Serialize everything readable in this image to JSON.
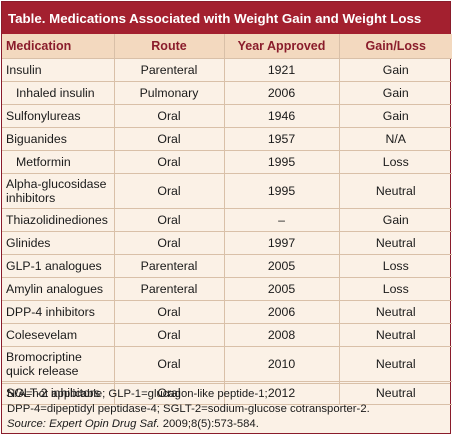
{
  "title": "Table. Medications Associated with Weight Gain and Weight Loss",
  "headers": [
    "Medication",
    "Route",
    "Year Approved",
    "Gain/Loss"
  ],
  "rows": [
    {
      "medication": "Insulin",
      "route": "Parenteral",
      "year": "1921",
      "effect": "Gain"
    },
    {
      "medication": "Inhaled insulin",
      "route": "Pulmonary",
      "year": "2006",
      "effect": "Gain"
    },
    {
      "medication": "Sulfonylureas",
      "route": "Oral",
      "year": "1946",
      "effect": "Gain"
    },
    {
      "medication": "Biguanides",
      "route": "Oral",
      "year": "1957",
      "effect": "N/A"
    },
    {
      "medication": "Metformin",
      "route": "Oral",
      "year": "1995",
      "effect": "Loss"
    },
    {
      "medication": "Alpha-glucosidase inhibitors",
      "route": "Oral",
      "year": "1995",
      "effect": "Neutral"
    },
    {
      "medication": "Thiazolidinediones",
      "route": "Oral",
      "year": "–",
      "effect": "Gain"
    },
    {
      "medication": "Glinides",
      "route": "Oral",
      "year": "1997",
      "effect": "Neutral"
    },
    {
      "medication": "GLP-1 analogues",
      "route": "Parenteral",
      "year": "2005",
      "effect": "Loss"
    },
    {
      "medication": "Amylin analogues",
      "route": "Parenteral",
      "year": "2005",
      "effect": "Loss"
    },
    {
      "medication": "DPP-4 inhibitors",
      "route": "Oral",
      "year": "2006",
      "effect": "Neutral"
    },
    {
      "medication": "Colesevelam",
      "route": "Oral",
      "year": "2008",
      "effect": "Neutral"
    },
    {
      "medication": "Bromocriptine quick release",
      "route": "Oral",
      "year": "2010",
      "effect": "Neutral"
    },
    {
      "medication": "SGLT-2 inhibitors",
      "route": "Oral",
      "year": "2012",
      "effect": "Neutral"
    }
  ],
  "footnotes": {
    "line1": "N/A=not applicable; GLP-1=glucagon-like peptide-1;",
    "line2": "DPP-4=dipeptidyl peptidase-4; SGLT-2=sodium-glucose cotransporter-2.",
    "source_label": "Source:",
    "source_journal": "Expert Opin Drug Saf.",
    "source_citation": " 2009;8(5):573-584."
  },
  "colors": {
    "title_bg": "#a3202f",
    "header_bg": "#f3d9bf",
    "body_bg": "#fbf1e6",
    "header_text": "#8a1c2b"
  }
}
